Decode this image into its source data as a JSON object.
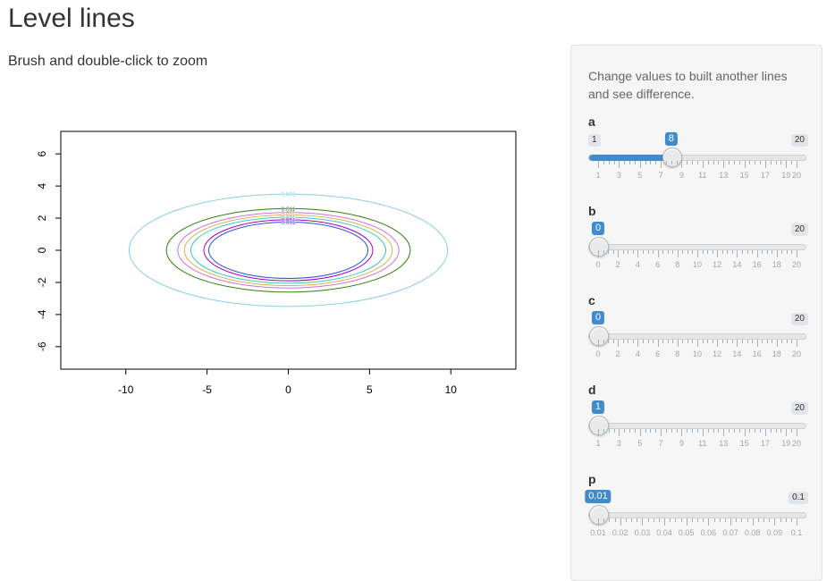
{
  "page": {
    "title": "Level lines",
    "subtitle": "Brush and double-click to zoom"
  },
  "sidebar": {
    "help_text": "Change values to built another lines and see difference."
  },
  "sliders": [
    {
      "id": "a",
      "label": "a",
      "min": 1,
      "max": 20,
      "value": 8,
      "min_label": "1",
      "max_label": "20",
      "value_label": "8",
      "tick_labels": [
        "1",
        "3",
        "5",
        "7",
        "9",
        "11",
        "13",
        "15",
        "17",
        "19",
        "20"
      ]
    },
    {
      "id": "b",
      "label": "b",
      "min": 0,
      "max": 20,
      "value": 0,
      "min_label": "",
      "max_label": "20",
      "value_label": "0",
      "tick_labels": [
        "0",
        "2",
        "4",
        "6",
        "8",
        "10",
        "12",
        "14",
        "16",
        "18",
        "20"
      ]
    },
    {
      "id": "c",
      "label": "c",
      "min": 0,
      "max": 20,
      "value": 0,
      "min_label": "",
      "max_label": "20",
      "value_label": "0",
      "tick_labels": [
        "0",
        "2",
        "4",
        "6",
        "8",
        "10",
        "12",
        "14",
        "16",
        "18",
        "20"
      ]
    },
    {
      "id": "d",
      "label": "d",
      "min": 1,
      "max": 20,
      "value": 1,
      "min_label": "",
      "max_label": "20",
      "value_label": "1",
      "tick_labels": [
        "1",
        "3",
        "5",
        "7",
        "9",
        "11",
        "13",
        "15",
        "17",
        "19",
        "20"
      ]
    },
    {
      "id": "p",
      "label": "p",
      "min": 0.01,
      "max": 0.1,
      "value": 0.01,
      "min_label": "",
      "max_label": "0.1",
      "value_label": "0.01",
      "tick_labels": [
        "0.01",
        "0.02",
        "0.03",
        "0.04",
        "0.05",
        "0.06",
        "0.07",
        "0.08",
        "0.09",
        "0.1"
      ]
    }
  ],
  "chart_data": {
    "type": "line",
    "subtype": "contour",
    "title": "",
    "xlabel": "",
    "ylabel": "",
    "xlim": [
      -14,
      14
    ],
    "ylim": [
      -7.4,
      7.4
    ],
    "x_ticks": [
      -10,
      -5,
      0,
      5,
      10
    ],
    "y_ticks": [
      -6,
      -4,
      -2,
      0,
      2,
      4,
      6
    ],
    "x_tick_labels": [
      "-10",
      "-5",
      "0",
      "5",
      "10"
    ],
    "y_tick_labels": [
      "-6",
      "-4",
      "-2",
      "0",
      "2",
      "4",
      "6"
    ],
    "grid": false,
    "levels": [
      {
        "label": "0.001",
        "rx": 9.8,
        "ry": 3.5,
        "color": "#87ceeb"
      },
      {
        "label": "0.011",
        "rx": 7.5,
        "ry": 2.6,
        "color": "#2e7d0a"
      },
      {
        "label": "0.021",
        "rx": 6.8,
        "ry": 2.35,
        "color": "#d070d0"
      },
      {
        "label": "0.031",
        "rx": 6.4,
        "ry": 2.2,
        "color": "#d4b44a"
      },
      {
        "label": "0.041",
        "rx": 6.0,
        "ry": 2.05,
        "color": "#40c8c0"
      },
      {
        "label": "0.051",
        "rx": 5.2,
        "ry": 1.9,
        "color": "#a000c8"
      },
      {
        "label": "0.061",
        "rx": 4.9,
        "ry": 1.75,
        "color": "#3050d8"
      }
    ]
  }
}
